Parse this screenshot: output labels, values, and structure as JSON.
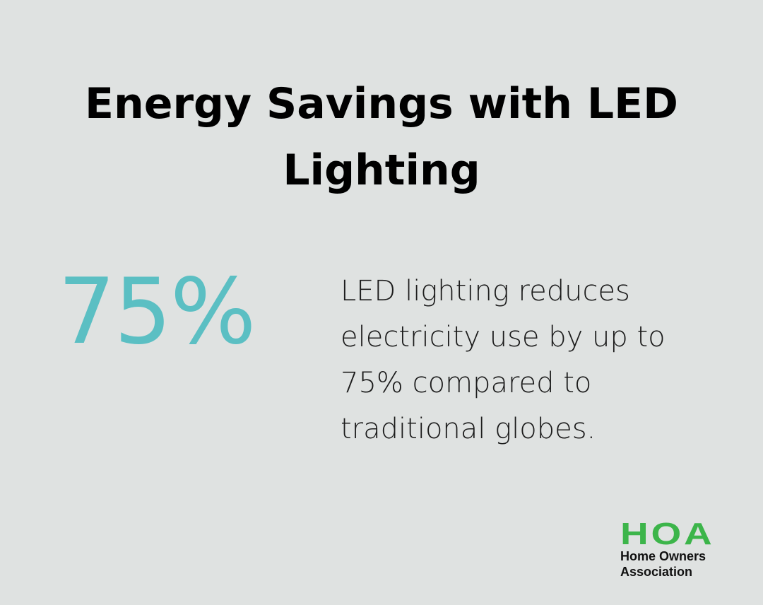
{
  "title": {
    "line1": "Energy Savings with LED",
    "line2": "Lighting"
  },
  "stat": {
    "value": "75%",
    "description_lines": [
      "LED lighting reduces",
      "electricity use by up to",
      "75% compared to",
      "traditional globes."
    ]
  },
  "logo": {
    "mark": "HOA",
    "line1": "Home Owners",
    "line2": "Association"
  },
  "colors": {
    "background": "#dfe2e1",
    "accent": "#5bbfc3",
    "brand_green": "#3cb54a"
  }
}
